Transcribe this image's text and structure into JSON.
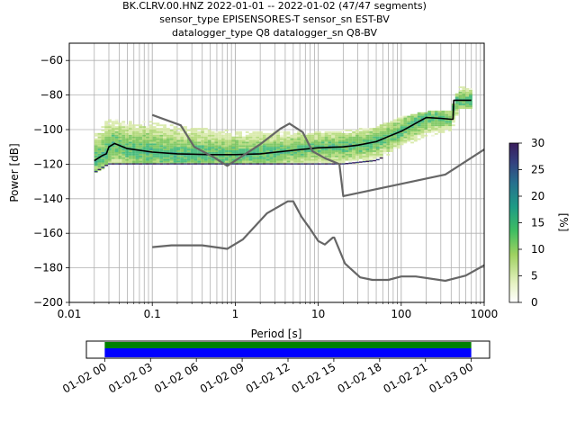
{
  "title_lines": [
    "BK.CLRV.00.HNZ   2022-01-01 -- 2022-01-02  (47/47 segments)",
    "sensor_type EPISENSORES-T sensor_sn EST-BV",
    "datalogger_type Q8 datalogger_sn Q8-BV"
  ],
  "colors": {
    "median": "#000000",
    "noise_models": "#666666",
    "grid": "#b0b0b0",
    "coverage_green": "#008000",
    "coverage_blue": "#0000ff"
  },
  "chart_data": [
    {
      "type": "heatmap",
      "xlabel": "Period [s]",
      "ylabel": "Power [dB]",
      "xscale": "log",
      "xlim": [
        0.01,
        1000
      ],
      "ylim": [
        -200,
        -50
      ],
      "xticks": [
        0.01,
        0.1,
        1,
        10,
        100,
        1000
      ],
      "xtick_labels": [
        "0.01",
        "0.1",
        "1",
        "10",
        "100",
        "1000"
      ],
      "yticks": [
        -200,
        -180,
        -160,
        -140,
        -120,
        -100,
        -80,
        -60
      ],
      "ytick_labels": [
        "−200",
        "−180",
        "−160",
        "−140",
        "−120",
        "−100",
        "−80",
        "−60"
      ],
      "grid": true,
      "colorbar": {
        "label": "[%]",
        "range": [
          0,
          30
        ],
        "ticks": [
          0,
          5,
          10,
          15,
          20,
          25,
          30
        ],
        "tick_labels": [
          "0",
          "5",
          "10",
          "15",
          "20",
          "25",
          "30"
        ],
        "colormap": [
          "#ffffff",
          "#d4e8a0",
          "#7fc24a",
          "#21b36b",
          "#1f8f8a",
          "#2e4f8e",
          "#3a1d5c"
        ]
      },
      "density_envelope": {
        "period": [
          0.02,
          0.03,
          0.05,
          0.1,
          0.2,
          0.5,
          1,
          2,
          5,
          10,
          20,
          50,
          100,
          200,
          400,
          500,
          700
        ],
        "upper_db": [
          -104,
          -94,
          -95,
          -96,
          -98,
          -100,
          -101,
          -101,
          -101,
          -101,
          -101,
          -99,
          -93,
          -90,
          -89,
          -75,
          -75
        ],
        "lower_db": [
          -125,
          -120,
          -120,
          -120,
          -120,
          -120,
          -120,
          -120,
          -120,
          -120,
          -120,
          -118,
          -111,
          -104,
          -101,
          -88,
          -88
        ]
      },
      "series": [
        {
          "type": "line",
          "x": [
            0.02,
            0.025,
            0.028,
            0.03,
            0.035,
            0.05,
            0.1,
            0.2,
            0.5,
            1,
            2,
            5,
            10,
            20,
            30,
            50,
            70,
            100,
            200,
            300,
            400,
            420,
            430,
            700
          ],
          "y": [
            -118,
            -115,
            -114,
            -110,
            -108,
            -111,
            -113,
            -114,
            -114.5,
            -114.5,
            -114,
            -112,
            -110.5,
            -110,
            -109,
            -107,
            -104,
            -101,
            -93,
            -93.5,
            -94,
            -94,
            -83,
            -83
          ]
        },
        {
          "type": "line",
          "x": [
            0.1,
            0.22,
            0.32,
            0.55,
            0.8,
            2,
            3.5,
            4.5,
            6.5,
            8.5,
            12,
            18,
            20,
            340,
            1000
          ],
          "y": [
            -91.5,
            -97.5,
            -110,
            -116,
            -121,
            -108.5,
            -99.5,
            -96.5,
            -101.5,
            -112.5,
            -116.5,
            -120,
            -138.5,
            -126,
            -111.5
          ]
        },
        {
          "type": "line",
          "x": [
            0.1,
            0.17,
            0.4,
            0.8,
            1.24,
            2.4,
            4.3,
            5,
            6.3,
            8,
            10,
            12,
            15,
            15.6,
            21,
            32,
            45,
            70,
            100,
            150,
            340,
            600,
            1000
          ],
          "y": [
            -168,
            -167,
            -167,
            -169,
            -163.5,
            -148.5,
            -141.5,
            -141.5,
            -150.5,
            -157.5,
            -164.5,
            -166.5,
            -162.5,
            -162.5,
            -177.5,
            -185.5,
            -187,
            -187,
            -185,
            -185,
            -187.5,
            -184.5,
            -178.5
          ]
        }
      ]
    },
    {
      "type": "bar",
      "xtick_labels": [
        "01-02 00",
        "01-02 03",
        "01-02 06",
        "01-02 09",
        "01-02 12",
        "01-02 15",
        "01-02 18",
        "01-02 21",
        "01-03 00"
      ],
      "x_hours": [
        0,
        3,
        6,
        9,
        12,
        15,
        18,
        21,
        24
      ],
      "xlim_hours": [
        -1.2,
        25.2
      ],
      "coverage_hours": [
        0,
        24
      ]
    }
  ]
}
